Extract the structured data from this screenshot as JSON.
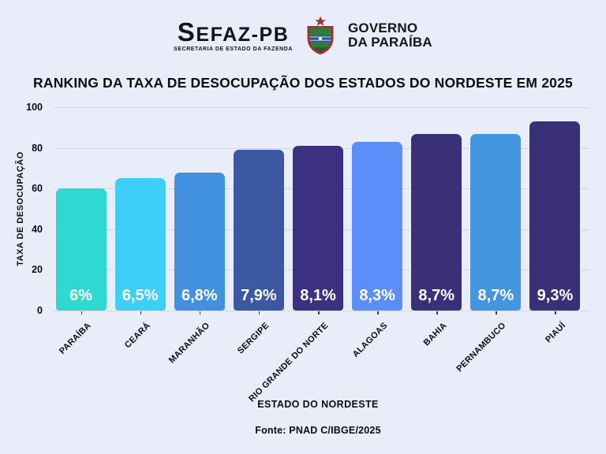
{
  "header": {
    "sefaz": {
      "name": "SEFAZ-PB",
      "subtitle": "SECRETARIA DE ESTADO DA FAZENDA"
    },
    "governo": {
      "line1": "GOVERNO",
      "line2": "DA PARAÍBA"
    }
  },
  "chart_data": {
    "type": "bar",
    "title": "RANKING DA TAXA DE DESOCUPAÇÃO DOS ESTADOS DO NORDESTE EM 2025",
    "categories": [
      "PARAÍBA",
      "CEARÁ",
      "MARANHÃO",
      "SERGIPE",
      "RIO GRANDE DO NORTE",
      "ALAGOAS",
      "BAHIA",
      "PERNAMBUCO",
      "PIAUÍ"
    ],
    "values": [
      6,
      6.5,
      6.8,
      7.9,
      8.1,
      8.3,
      8.7,
      8.7,
      9.3
    ],
    "value_labels": [
      "6%",
      "6,5%",
      "6,8%",
      "7,9%",
      "8,1%",
      "8,3%",
      "8,7%",
      "8,7%",
      "9,3%"
    ],
    "bar_colors": [
      "#2fd9d2",
      "#3ecff7",
      "#4191e0",
      "#3c58a3",
      "#3c3180",
      "#5b8ef8",
      "#3a3077",
      "#4296e0",
      "#3a3077"
    ],
    "xlabel": "ESTADO DO NORDESTE",
    "ylabel": "TAXA DE DESOCUPAÇÃO",
    "yticks": [
      0,
      20,
      40,
      60,
      80,
      100
    ],
    "ylim": [
      0,
      100
    ],
    "bar_axis_scale": "percent values plotted ×10 on the 0–100 axis",
    "grid": true,
    "legend": false,
    "source": "Fonte: PNAD C/IBGE/2025"
  },
  "colors": {
    "background": "#e9edfa",
    "text": "#0b0b13",
    "gridline": "#d2d7e5",
    "value_label": "#ffffff"
  }
}
